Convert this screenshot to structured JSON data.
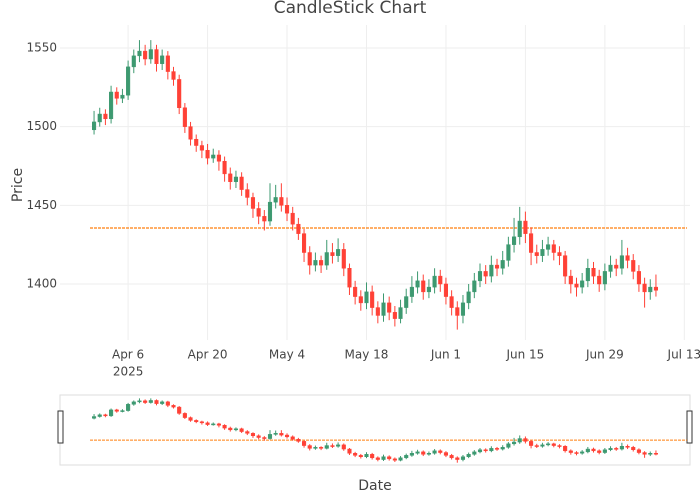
{
  "chart_data": {
    "type": "candlestick",
    "title": "CandleStick Chart",
    "x_label": "Date",
    "y_label": "Price",
    "x": [
      "2025-03-31",
      "2025-04-01",
      "2025-04-02",
      "2025-04-03",
      "2025-04-04",
      "2025-04-05",
      "2025-04-06",
      "2025-04-07",
      "2025-04-08",
      "2025-04-09",
      "2025-04-10",
      "2025-04-11",
      "2025-04-12",
      "2025-04-13",
      "2025-04-14",
      "2025-04-15",
      "2025-04-16",
      "2025-04-17",
      "2025-04-18",
      "2025-04-19",
      "2025-04-20",
      "2025-04-21",
      "2025-04-22",
      "2025-04-23",
      "2025-04-24",
      "2025-04-25",
      "2025-04-26",
      "2025-04-27",
      "2025-04-28",
      "2025-04-29",
      "2025-04-30",
      "2025-05-01",
      "2025-05-02",
      "2025-05-03",
      "2025-05-04",
      "2025-05-05",
      "2025-05-06",
      "2025-05-07",
      "2025-05-08",
      "2025-05-09",
      "2025-05-10",
      "2025-05-11",
      "2025-05-12",
      "2025-05-13",
      "2025-05-14",
      "2025-05-15",
      "2025-05-16",
      "2025-05-17",
      "2025-05-18",
      "2025-05-19",
      "2025-05-20",
      "2025-05-21",
      "2025-05-22",
      "2025-05-23",
      "2025-05-24",
      "2025-05-25",
      "2025-05-26",
      "2025-05-27",
      "2025-05-28",
      "2025-05-29",
      "2025-05-30",
      "2025-05-31",
      "2025-06-01",
      "2025-06-02",
      "2025-06-03",
      "2025-06-04",
      "2025-06-05",
      "2025-06-06",
      "2025-06-07",
      "2025-06-08",
      "2025-06-09",
      "2025-06-10",
      "2025-06-11",
      "2025-06-12",
      "2025-06-13",
      "2025-06-14",
      "2025-06-15",
      "2025-06-16",
      "2025-06-17",
      "2025-06-18",
      "2025-06-19",
      "2025-06-20",
      "2025-06-21",
      "2025-06-22",
      "2025-06-23",
      "2025-06-24",
      "2025-06-25",
      "2025-06-26",
      "2025-06-27",
      "2025-06-28",
      "2025-06-29",
      "2025-06-30",
      "2025-07-01",
      "2025-07-02",
      "2025-07-03",
      "2025-07-04",
      "2025-07-05",
      "2025-07-06",
      "2025-07-07",
      "2025-07-08"
    ],
    "open": [
      1498,
      1503,
      1508,
      1505,
      1522,
      1518,
      1520,
      1538,
      1545,
      1548,
      1543,
      1549,
      1540,
      1545,
      1535,
      1530,
      1512,
      1500,
      1492,
      1488,
      1485,
      1480,
      1482,
      1478,
      1470,
      1465,
      1468,
      1460,
      1455,
      1448,
      1443,
      1440,
      1452,
      1455,
      1450,
      1445,
      1438,
      1432,
      1420,
      1412,
      1415,
      1412,
      1420,
      1418,
      1422,
      1410,
      1398,
      1392,
      1388,
      1395,
      1385,
      1380,
      1388,
      1382,
      1378,
      1385,
      1392,
      1398,
      1402,
      1395,
      1398,
      1405,
      1400,
      1392,
      1385,
      1380,
      1388,
      1395,
      1402,
      1408,
      1405,
      1412,
      1410,
      1415,
      1425,
      1430,
      1440,
      1432,
      1420,
      1418,
      1422,
      1425,
      1420,
      1418,
      1405,
      1400,
      1398,
      1402,
      1410,
      1405,
      1400,
      1408,
      1412,
      1410,
      1418,
      1415,
      1408,
      1400,
      1395,
      1398
    ],
    "high": [
      1510,
      1512,
      1511,
      1526,
      1525,
      1524,
      1542,
      1549,
      1555,
      1552,
      1555,
      1552,
      1549,
      1548,
      1538,
      1533,
      1515,
      1503,
      1495,
      1491,
      1489,
      1486,
      1485,
      1481,
      1474,
      1472,
      1471,
      1464,
      1458,
      1452,
      1447,
      1464,
      1463,
      1464,
      1455,
      1449,
      1442,
      1435,
      1424,
      1420,
      1418,
      1428,
      1426,
      1429,
      1426,
      1413,
      1402,
      1396,
      1401,
      1399,
      1389,
      1394,
      1392,
      1386,
      1390,
      1397,
      1405,
      1408,
      1406,
      1403,
      1410,
      1409,
      1404,
      1396,
      1389,
      1393,
      1400,
      1407,
      1413,
      1412,
      1418,
      1416,
      1421,
      1430,
      1442,
      1449,
      1446,
      1436,
      1425,
      1428,
      1430,
      1428,
      1424,
      1421,
      1409,
      1404,
      1407,
      1416,
      1414,
      1409,
      1413,
      1418,
      1416,
      1428,
      1423,
      1419,
      1412,
      1404,
      1403,
      1406
    ],
    "low": [
      1495,
      1500,
      1501,
      1502,
      1514,
      1515,
      1517,
      1534,
      1541,
      1539,
      1540,
      1535,
      1536,
      1530,
      1526,
      1508,
      1496,
      1488,
      1484,
      1480,
      1476,
      1477,
      1472,
      1465,
      1460,
      1461,
      1456,
      1450,
      1442,
      1438,
      1434,
      1437,
      1448,
      1446,
      1440,
      1434,
      1428,
      1414,
      1406,
      1408,
      1407,
      1409,
      1413,
      1414,
      1405,
      1393,
      1387,
      1383,
      1384,
      1380,
      1375,
      1376,
      1377,
      1373,
      1375,
      1381,
      1388,
      1394,
      1390,
      1391,
      1394,
      1395,
      1387,
      1380,
      1371,
      1375,
      1384,
      1391,
      1398,
      1400,
      1401,
      1405,
      1406,
      1411,
      1420,
      1425,
      1426,
      1412,
      1413,
      1414,
      1418,
      1415,
      1412,
      1400,
      1394,
      1392,
      1394,
      1398,
      1400,
      1395,
      1396,
      1404,
      1405,
      1406,
      1410,
      1403,
      1395,
      1385,
      1390,
      1392
    ],
    "close": [
      1503,
      1508,
      1505,
      1522,
      1518,
      1520,
      1538,
      1545,
      1548,
      1543,
      1549,
      1540,
      1545,
      1535,
      1530,
      1512,
      1500,
      1492,
      1488,
      1485,
      1480,
      1482,
      1478,
      1470,
      1465,
      1468,
      1460,
      1455,
      1448,
      1443,
      1440,
      1452,
      1455,
      1450,
      1445,
      1438,
      1432,
      1420,
      1412,
      1415,
      1412,
      1420,
      1418,
      1422,
      1410,
      1398,
      1392,
      1388,
      1395,
      1385,
      1380,
      1388,
      1382,
      1378,
      1385,
      1392,
      1398,
      1402,
      1395,
      1398,
      1405,
      1400,
      1392,
      1385,
      1380,
      1388,
      1395,
      1402,
      1408,
      1405,
      1412,
      1410,
      1415,
      1425,
      1430,
      1440,
      1432,
      1420,
      1418,
      1422,
      1425,
      1420,
      1418,
      1405,
      1400,
      1398,
      1402,
      1410,
      1405,
      1400,
      1408,
      1412,
      1410,
      1418,
      1415,
      1408,
      1400,
      1395,
      1398,
      1396
    ],
    "increasing_color": "#3d9970",
    "decreasing_color": "#ff4136",
    "hline": {
      "value": 1435.6,
      "color": "#ff7f0e"
    },
    "xlim": [
      "2025-03-25",
      "2025-07-14"
    ],
    "xticks": [
      {
        "value": "2025-04-06",
        "label": "Apr 6"
      },
      {
        "value": "2025-04-20",
        "label": "Apr 20"
      },
      {
        "value": "2025-05-04",
        "label": "May 4"
      },
      {
        "value": "2025-05-18",
        "label": "May 18"
      },
      {
        "value": "2025-06-01",
        "label": "Jun 1"
      },
      {
        "value": "2025-06-15",
        "label": "Jun 15"
      },
      {
        "value": "2025-06-29",
        "label": "Jun 29"
      },
      {
        "value": "2025-07-13",
        "label": "Jul 13"
      }
    ],
    "x_year_label": "2025",
    "ylim": [
      1364.4,
      1564.6
    ],
    "yticks": [
      1400,
      1450,
      1500,
      1550
    ],
    "grid": true,
    "range_slider": true
  }
}
